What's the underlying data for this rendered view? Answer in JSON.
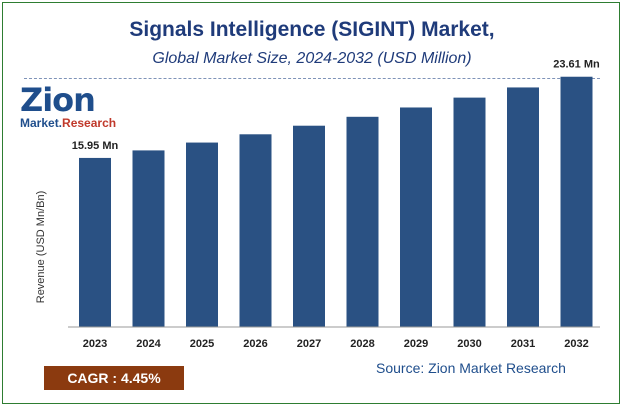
{
  "header": {
    "title": "Signals Intelligence (SIGINT) Market,",
    "subtitle": "Global Market Size, 2024-2032 (USD Million)"
  },
  "logo": {
    "main": "Zion",
    "line2_a": "Market.",
    "line2_b": "Research"
  },
  "footer": {
    "cagr": "CAGR :  4.45%",
    "source": "Source: Zion Market Research"
  },
  "colors": {
    "bar": "#2a5183",
    "title": "#1f3b7a",
    "cagr_bg": "#8b3a0f"
  },
  "chart_data": {
    "type": "bar",
    "categories": [
      "2023",
      "2024",
      "2025",
      "2026",
      "2027",
      "2028",
      "2029",
      "2030",
      "2031",
      "2032"
    ],
    "values": [
      15.95,
      16.66,
      17.4,
      18.18,
      18.99,
      19.83,
      20.71,
      21.64,
      22.6,
      23.61
    ],
    "data_labels": [
      {
        "index": 0,
        "text": "15.95 Mn"
      },
      {
        "index": 9,
        "text": "23.61 Mn"
      }
    ],
    "ylabel": "Revenue (USD Mn/Bn)",
    "xlabel": "",
    "ylim": [
      0,
      25
    ],
    "grid": false
  }
}
